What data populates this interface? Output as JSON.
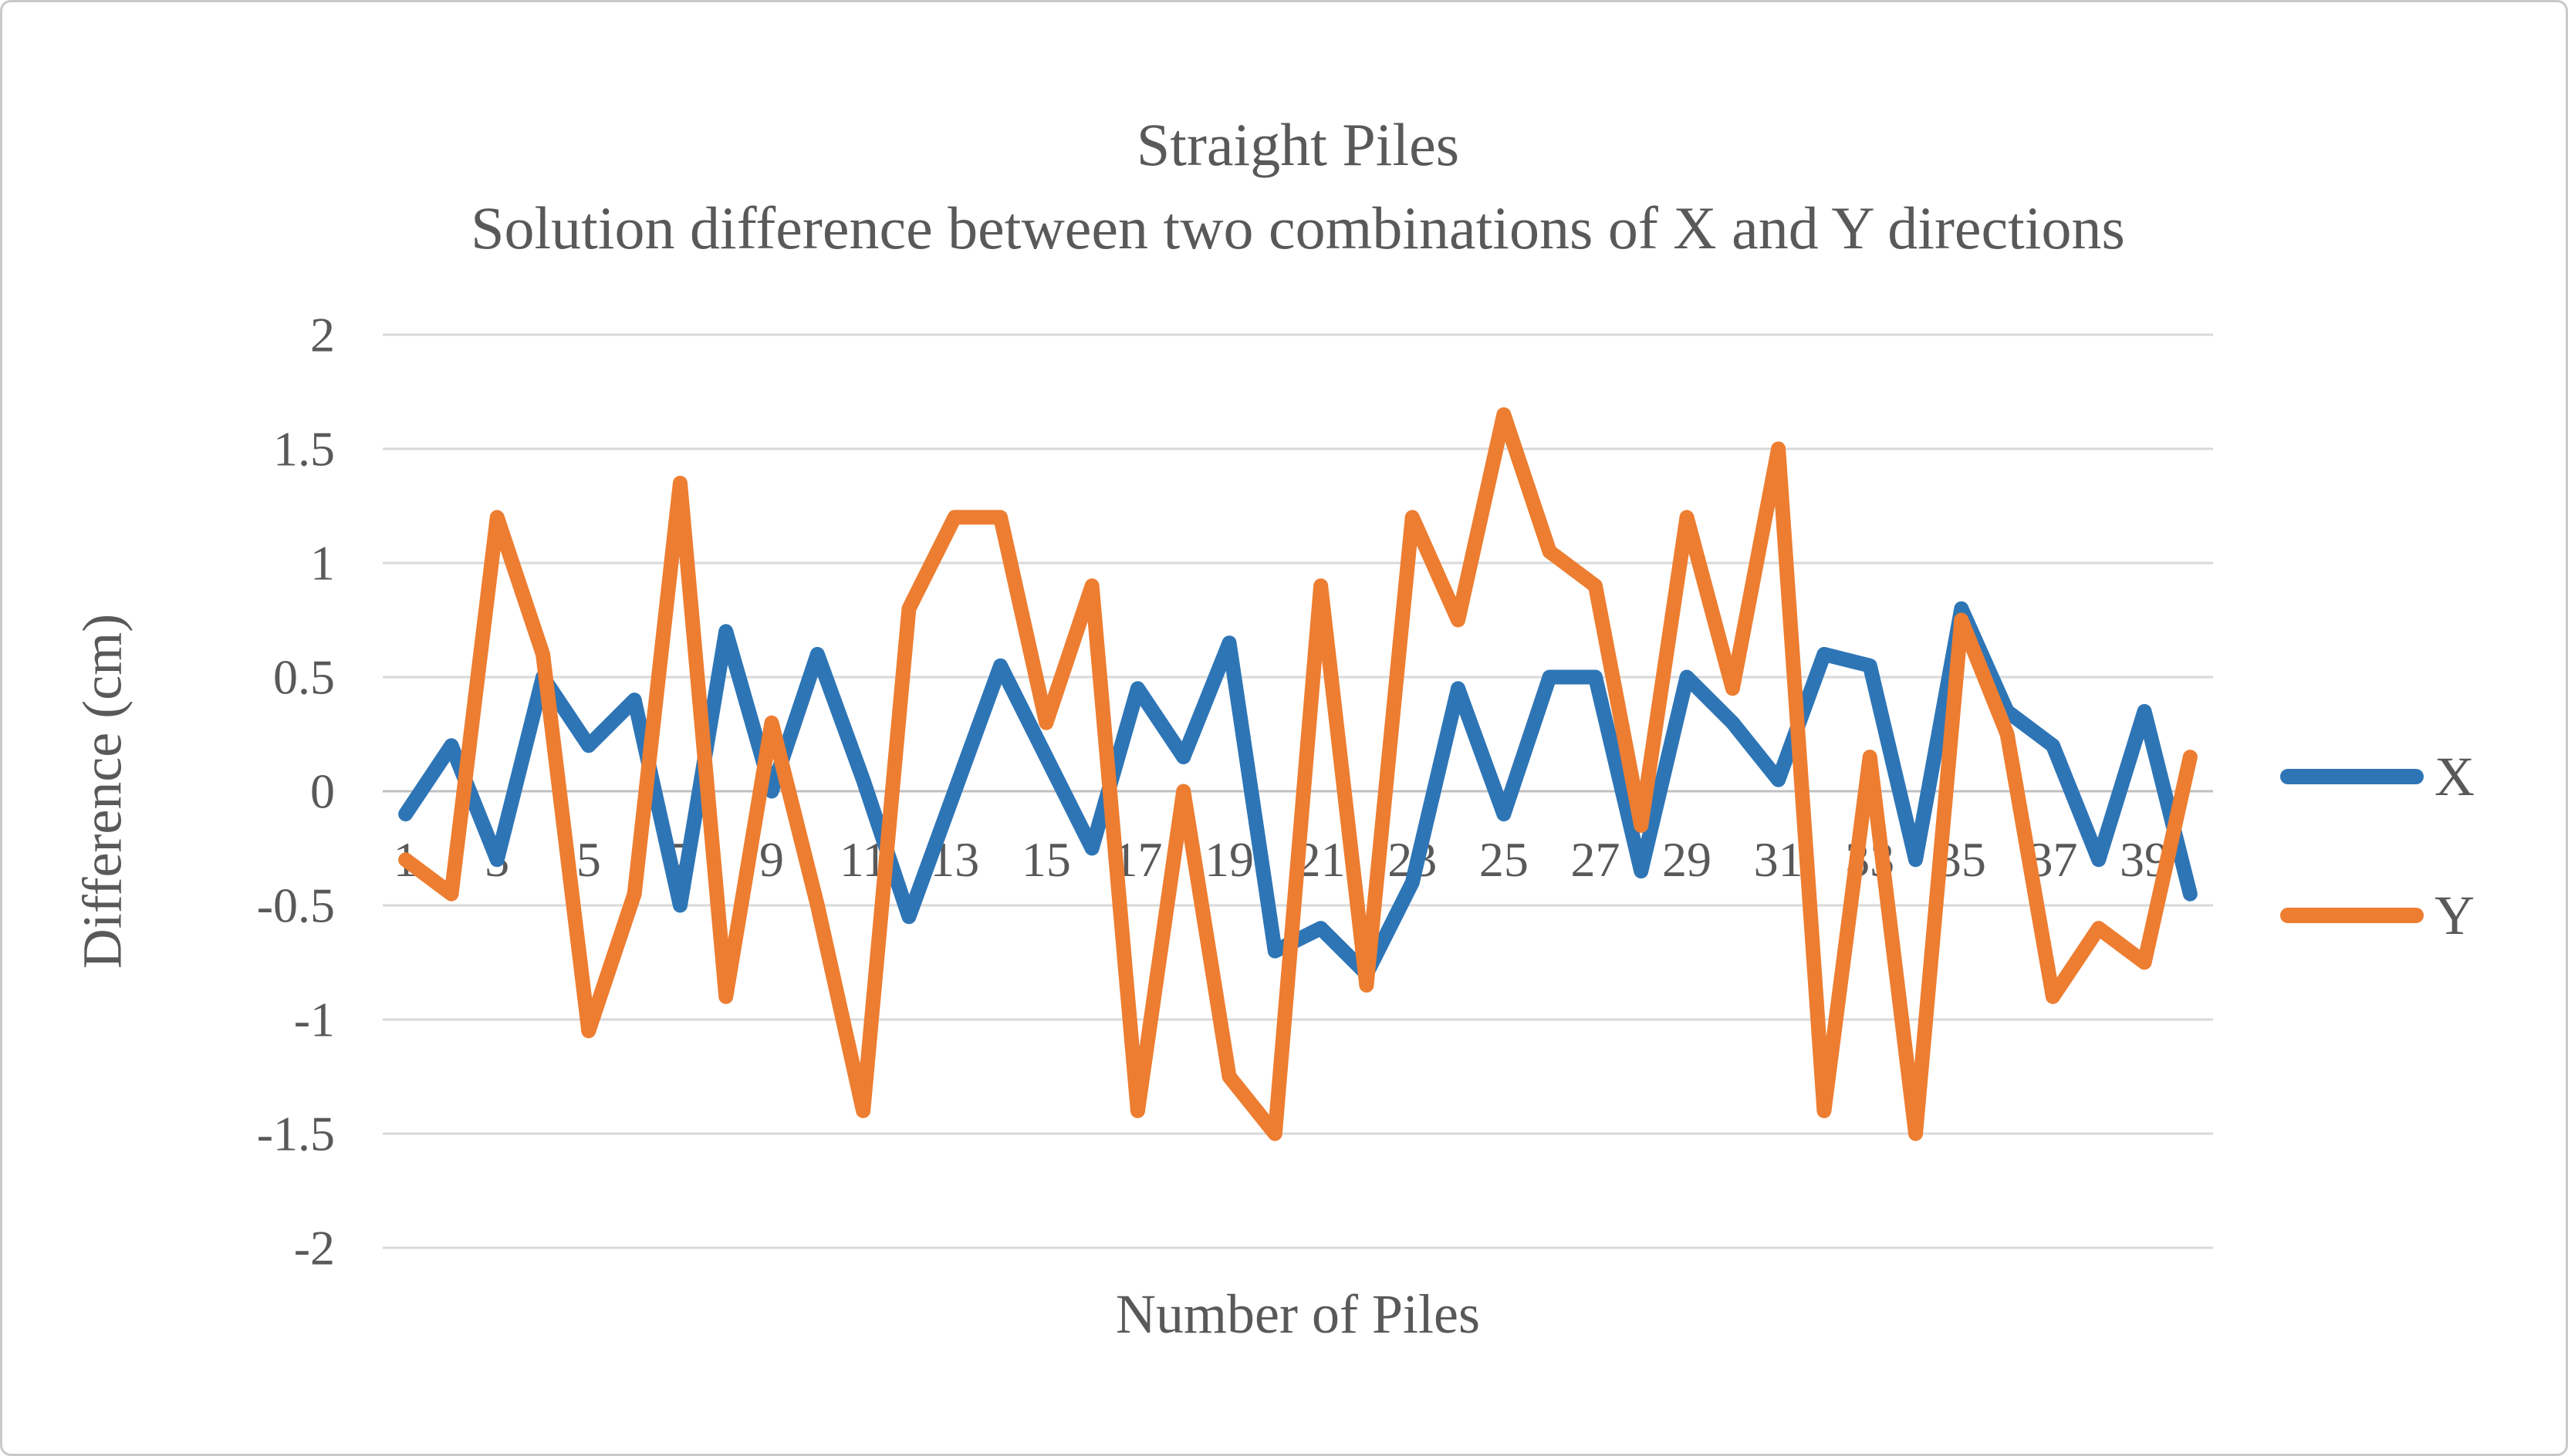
{
  "chart": {
    "title_line1": "Straight Piles",
    "title_line2": "Solution difference between two combinations of X and Y directions",
    "xlabel": "Number of Piles",
    "ylabel": "Difference (cm)"
  },
  "legend": {
    "position": "right",
    "items": [
      {
        "label": "X",
        "swatch": "line"
      },
      {
        "label": "Y",
        "swatch": "line"
      }
    ]
  },
  "style": {
    "text_color": "#595959",
    "grid_color": "#d9d9d9",
    "zero_axis_color": "#c0c0c0",
    "border_color": "#c9c9c9",
    "background": "#ffffff",
    "line_width": 19
  },
  "chart_data": {
    "type": "line",
    "title": "Straight Piles — Solution difference between two combinations of X and Y directions",
    "xlabel": "Number of Piles",
    "ylabel": "Difference (cm)",
    "x": [
      1,
      2,
      3,
      4,
      5,
      6,
      7,
      8,
      9,
      10,
      11,
      12,
      13,
      14,
      15,
      16,
      17,
      18,
      19,
      20,
      21,
      22,
      23,
      24,
      25,
      26,
      27,
      28,
      29,
      30,
      31,
      32,
      33,
      34,
      35,
      36,
      37,
      38,
      39,
      40
    ],
    "x_tick_labels": [
      "1",
      "3",
      "5",
      "7",
      "9",
      "11",
      "13",
      "15",
      "17",
      "19",
      "21",
      "23",
      "25",
      "27",
      "29",
      "31",
      "33",
      "35",
      "37",
      "39"
    ],
    "ylim": [
      -2,
      2
    ],
    "yticks": [
      2,
      1.5,
      1,
      0.5,
      0,
      -0.5,
      -1,
      -1.5,
      -2
    ],
    "y_tick_labels": [
      "2",
      "1.5",
      "1",
      "0.5",
      "0",
      "-0.5",
      "-1",
      "-1.5",
      "-2"
    ],
    "grid": "horizontal",
    "legend_position": "right",
    "series": [
      {
        "name": "X",
        "color": "#2E75B6",
        "values": [
          -0.1,
          0.2,
          -0.3,
          0.5,
          0.2,
          0.4,
          -0.5,
          0.7,
          0,
          0.6,
          0.05,
          -0.55,
          0,
          0.55,
          0.15,
          -0.25,
          0.45,
          0.15,
          0.65,
          -0.7,
          -0.6,
          -0.8,
          -0.4,
          0.45,
          -0.1,
          0.5,
          0.5,
          -0.35,
          0.5,
          0.3,
          0.05,
          0.6,
          0.55,
          -0.3,
          0.8,
          0.35,
          0.2,
          -0.3,
          0.35,
          -0.45
        ]
      },
      {
        "name": "Y",
        "color": "#ED7D31",
        "values": [
          -0.3,
          -0.45,
          1.2,
          0.6,
          -1.05,
          -0.45,
          1.35,
          -0.9,
          0.3,
          -0.5,
          -1.4,
          0.8,
          1.2,
          1.2,
          0.3,
          0.9,
          -1.4,
          0,
          -1.25,
          -1.5,
          0.9,
          -0.85,
          1.2,
          0.75,
          1.65,
          1.05,
          0.9,
          -0.15,
          1.2,
          0.45,
          1.5,
          -1.4,
          0.15,
          -1.5,
          0.75,
          0.25,
          -0.9,
          -0.6,
          -0.75,
          0.15
        ]
      }
    ]
  }
}
